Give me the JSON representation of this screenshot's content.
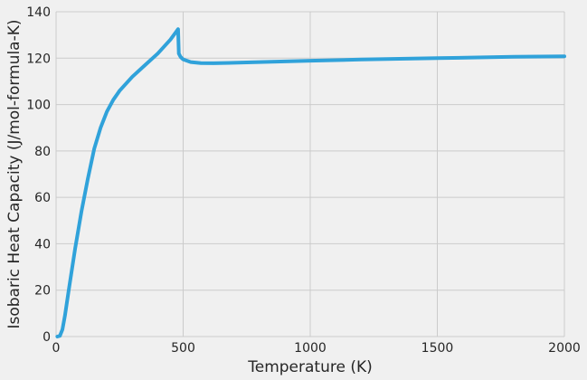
{
  "chart_data": {
    "type": "line",
    "title": "",
    "xlabel": "Temperature (K)",
    "ylabel": "Isobaric Heat Capacity (J/mol-formula-K)",
    "xlim": [
      0,
      2000
    ],
    "ylim": [
      0,
      140
    ],
    "x_ticks": [
      0,
      500,
      1000,
      1500,
      2000
    ],
    "y_ticks": [
      0,
      20,
      40,
      60,
      80,
      100,
      120,
      140
    ],
    "grid": true,
    "legend": "none",
    "series": [
      {
        "color": "#30a2da",
        "x": [
          5,
          15,
          25,
          35,
          50,
          75,
          100,
          125,
          150,
          175,
          200,
          225,
          250,
          300,
          350,
          400,
          450,
          470,
          480,
          483,
          490,
          500,
          530,
          570,
          620,
          700,
          800,
          1000,
          1200,
          1500,
          1800,
          2000
        ],
        "y": [
          0,
          0.3,
          3,
          9,
          20,
          38,
          54,
          68,
          81,
          90,
          97,
          102,
          106,
          112,
          117,
          122,
          128,
          131,
          132.5,
          122,
          120.5,
          119.5,
          118.3,
          117.9,
          117.8,
          118,
          118.3,
          118.9,
          119.4,
          120,
          120.6,
          120.8
        ]
      }
    ]
  }
}
